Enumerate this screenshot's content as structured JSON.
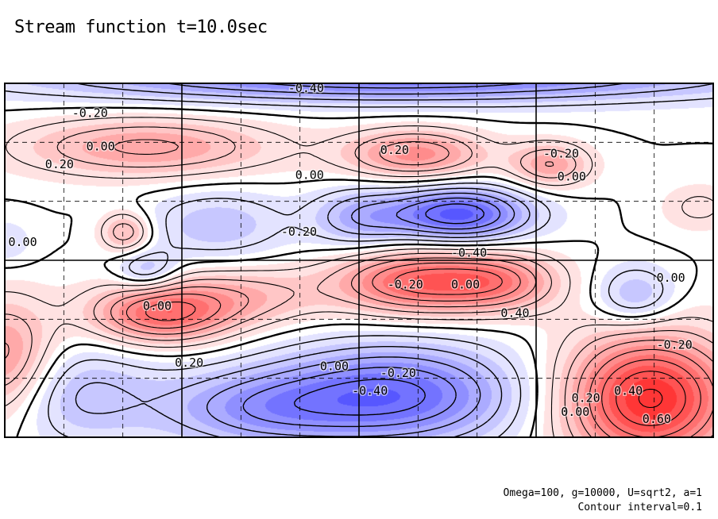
{
  "title": "Stream function t=10.0sec",
  "notes": {
    "params": "Omega=100, g=10000, U=sqrt2, a=1",
    "interval": "Contour interval=0.1"
  },
  "colors": {
    "positive": "#ff3030",
    "negative": "#3030ff",
    "frame": "#000000"
  },
  "chart_data": {
    "type": "heatmap",
    "title": "Stream function t=10.0sec",
    "variable": "stream function",
    "contour_interval": 0.1,
    "contour_labels": [
      {
        "text": "-0.40",
        "x": 0.4,
        "y": 0.975
      },
      {
        "text": "-0.20",
        "x": 0.095,
        "y": 0.905
      },
      {
        "text": "0.00",
        "x": 0.115,
        "y": 0.81
      },
      {
        "text": "0.20",
        "x": 0.057,
        "y": 0.76
      },
      {
        "text": "0.20",
        "x": 0.53,
        "y": 0.8
      },
      {
        "text": "-0.20",
        "x": 0.76,
        "y": 0.79
      },
      {
        "text": "0.00",
        "x": 0.78,
        "y": 0.725
      },
      {
        "text": "0.00",
        "x": 0.41,
        "y": 0.73
      },
      {
        "text": "0.00",
        "x": -0.02,
        "y": 0.54
      },
      {
        "text": "-0.20",
        "x": 0.39,
        "y": 0.57
      },
      {
        "text": "-0.40",
        "x": 0.63,
        "y": 0.51
      },
      {
        "text": "0.00",
        "x": 0.92,
        "y": 0.44
      },
      {
        "text": "-0.20",
        "x": 0.54,
        "y": 0.42
      },
      {
        "text": "0.00",
        "x": 0.63,
        "y": 0.42
      },
      {
        "text": "0.40",
        "x": 0.7,
        "y": 0.34
      },
      {
        "text": "0.00",
        "x": 0.195,
        "y": 0.36
      },
      {
        "text": "-0.20",
        "x": 0.92,
        "y": 0.25
      },
      {
        "text": "0.20",
        "x": 0.24,
        "y": 0.2
      },
      {
        "text": "0.00",
        "x": 0.445,
        "y": 0.19
      },
      {
        "text": "-0.20",
        "x": 0.53,
        "y": 0.17
      },
      {
        "text": "-0.40",
        "x": 0.49,
        "y": 0.12
      },
      {
        "text": "0.20",
        "x": 0.8,
        "y": 0.1
      },
      {
        "text": "0.00",
        "x": 0.785,
        "y": 0.06
      },
      {
        "text": "0.40",
        "x": 0.86,
        "y": 0.12
      },
      {
        "text": "0.60",
        "x": 0.9,
        "y": 0.04
      }
    ],
    "extrema": [
      {
        "sign": "positive",
        "x": 0.92,
        "y": 0.12,
        "value": 0.7
      },
      {
        "sign": "negative",
        "x": 0.64,
        "y": 0.62,
        "value": -0.55
      },
      {
        "sign": "positive",
        "x": 0.58,
        "y": 0.45,
        "value": 0.5
      },
      {
        "sign": "negative",
        "x": 0.55,
        "y": 0.12,
        "value": -0.5
      },
      {
        "sign": "negative",
        "x": 0.55,
        "y": 0.99,
        "value": -0.45
      }
    ],
    "grid": "dashed",
    "colorscale": "blue-white-red"
  }
}
